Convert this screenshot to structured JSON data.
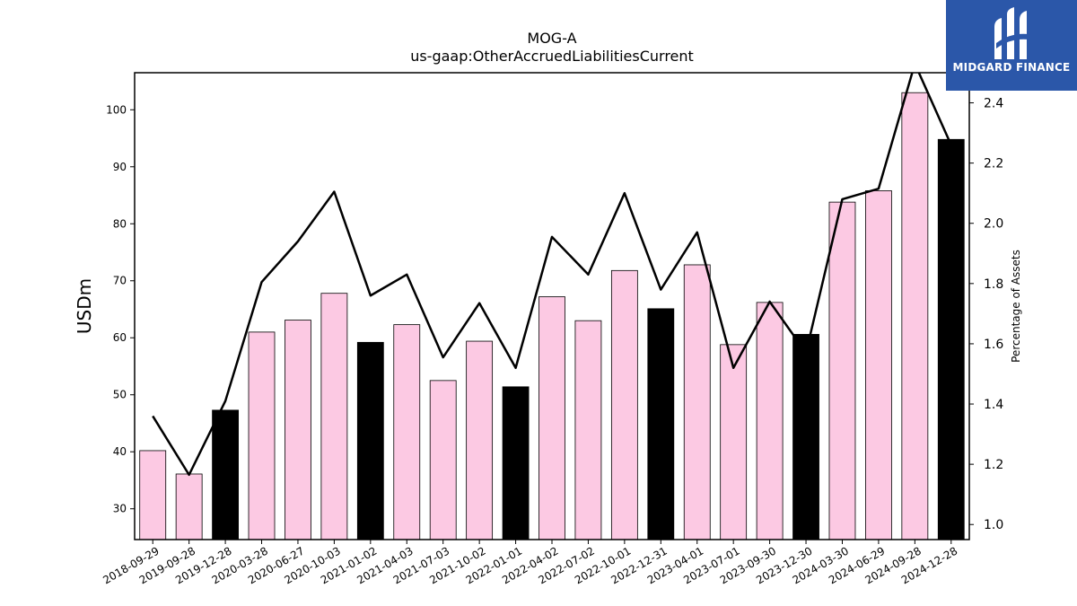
{
  "chart_data": {
    "type": "bar",
    "title": "MOG-A",
    "subtitle": "us-gaap:OtherAccruedLiabilitiesCurrent",
    "ylabel": "USDm",
    "y2label": "Percentage of Assets",
    "ylim": [
      24.6,
      106.5
    ],
    "y2lim": [
      0.95,
      2.5
    ],
    "yticks": [
      30,
      40,
      50,
      60,
      70,
      80,
      90,
      100
    ],
    "y2ticks": [
      1.0,
      1.2,
      1.4,
      1.6,
      1.8,
      2.0,
      2.2,
      2.4
    ],
    "categories": [
      "2018-09-29",
      "2019-09-28",
      "2019-12-28",
      "2020-03-28",
      "2020-06-27",
      "2020-10-03",
      "2021-01-02",
      "2021-04-03",
      "2021-07-03",
      "2021-10-02",
      "2022-01-01",
      "2022-04-02",
      "2022-07-02",
      "2022-10-01",
      "2022-12-31",
      "2023-04-01",
      "2023-07-01",
      "2023-09-30",
      "2023-12-30",
      "2024-03-30",
      "2024-06-29",
      "2024-09-28",
      "2024-12-28"
    ],
    "series": [
      {
        "type": "bar",
        "values": [
          40.2,
          36.1,
          47.3,
          61.0,
          63.1,
          67.8,
          59.2,
          62.3,
          52.5,
          59.4,
          51.4,
          67.2,
          63.0,
          71.8,
          65.1,
          72.8,
          58.8,
          66.2,
          60.6,
          83.8,
          85.8,
          103.0,
          94.8
        ],
        "highlight": [
          false,
          false,
          true,
          false,
          false,
          false,
          true,
          false,
          false,
          false,
          true,
          false,
          false,
          false,
          true,
          false,
          false,
          false,
          true,
          false,
          false,
          false,
          true
        ]
      },
      {
        "type": "line",
        "axis": "right",
        "values": [
          1.36,
          1.165,
          1.41,
          1.805,
          1.94,
          2.105,
          1.76,
          1.83,
          1.555,
          1.735,
          1.52,
          1.955,
          1.83,
          2.1,
          1.78,
          1.97,
          1.52,
          1.74,
          1.57,
          2.08,
          2.115,
          2.53,
          2.26
        ]
      }
    ],
    "colors": {
      "bar": "#fcc9e3",
      "bar_highlight": "#000000",
      "line": "#000000"
    }
  },
  "logo": {
    "text": "MIDGARD FINANCE",
    "background": "#2b57a9"
  }
}
